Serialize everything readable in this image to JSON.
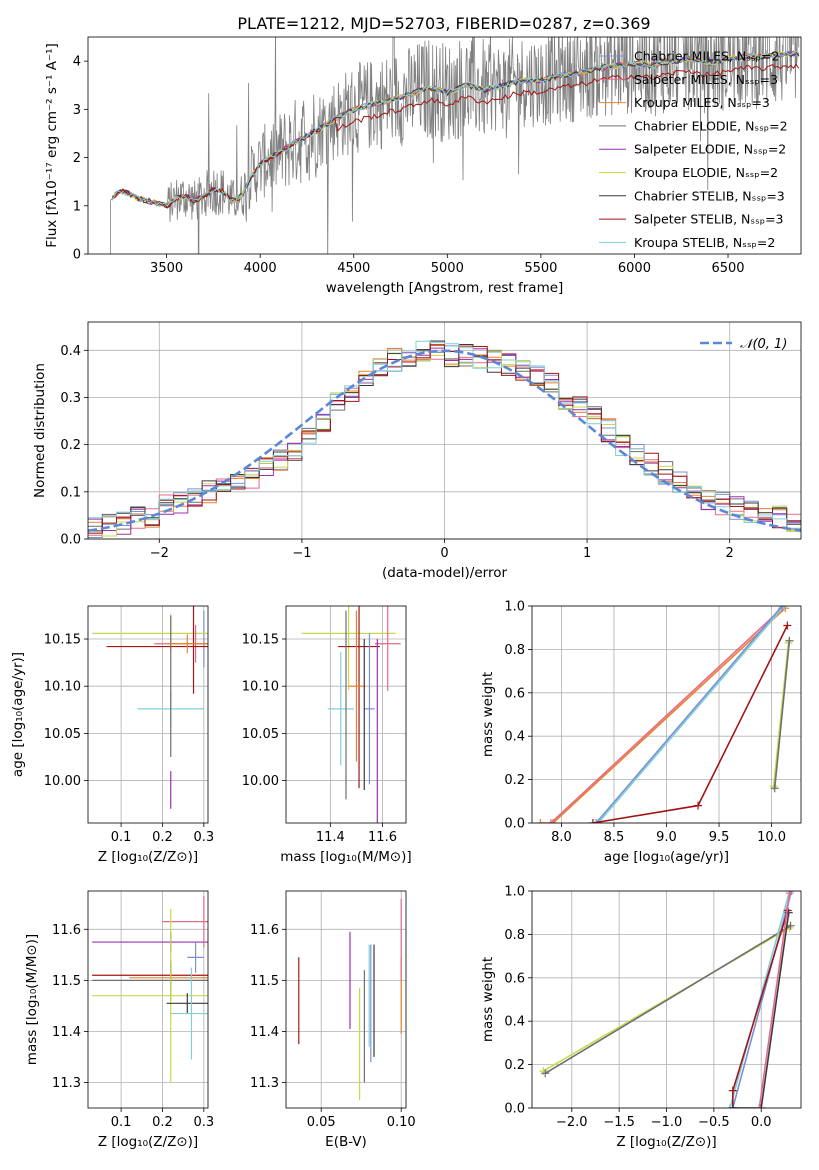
{
  "title": "PLATE=1212, MJD=52703, FIBERID=0287, z=0.369",
  "colors": {
    "chabrier_miles": "#7b8fd6",
    "salpeter_miles": "#e56a8a",
    "kroupa_miles": "#e8822a",
    "chabrier_elodie": "#6f6f6f",
    "salpeter_elodie": "#9b2fb0",
    "kroupa_elodie": "#c7d94a",
    "chabrier_stelib": "#3a3a3a",
    "salpeter_stelib": "#a31515",
    "kroupa_stelib": "#7fd0d8",
    "normal": "#5b87d6",
    "data": "#808080"
  },
  "chart_data": [
    {
      "type": "line",
      "xlabel": "wavelength [Angstrom, rest frame]",
      "ylabel": "Flux [fλ10⁻¹⁷ erg cm⁻² s⁻¹ A⁻¹]",
      "xlim": [
        3080,
        6890
      ],
      "ylim": [
        0,
        4.5
      ],
      "xticks": [
        3500,
        4000,
        4500,
        5000,
        5500,
        6000,
        6500
      ],
      "yticks": [
        0,
        1,
        2,
        3,
        4
      ],
      "legend": "right",
      "legend_entries": [
        "Chabrier MILES, Nₛₛₚ=2",
        "Salpeter MILES, Nₛₛₚ=3",
        "Kroupa MILES, Nₛₛₚ=3",
        "Chabrier ELODIE, Nₛₛₚ=2",
        "Salpeter ELODIE, Nₛₛₚ=2",
        "Kroupa ELODIE, Nₛₛₚ=2",
        "Chabrier STELIB, Nₛₛₚ=3",
        "Salpeter STELIB, Nₛₛₚ=3",
        "Kroupa STELIB, Nₛₛₚ=2"
      ],
      "continuum": {
        "x": [
          3200,
          3230,
          3260,
          3300,
          3350,
          3400,
          3450,
          3500,
          3550,
          3600,
          3650,
          3700,
          3750,
          3800,
          3850,
          3900,
          3950,
          4000,
          4050,
          4100,
          4200,
          4300,
          4400,
          4500,
          4600,
          4700,
          4800,
          4900,
          5000,
          5100,
          5200,
          5300,
          5400,
          5500,
          5600,
          5700,
          5800,
          5900,
          6000,
          6100,
          6200,
          6300,
          6400,
          6500,
          6600,
          6700,
          6800,
          6880
        ],
        "y": [
          1.1,
          1.25,
          1.3,
          1.25,
          1.15,
          1.1,
          1.05,
          1.0,
          1.15,
          1.2,
          1.1,
          1.2,
          1.35,
          1.3,
          1.1,
          1.2,
          1.6,
          1.85,
          2.0,
          2.1,
          2.35,
          2.55,
          2.8,
          3.0,
          3.1,
          3.2,
          3.3,
          3.45,
          3.35,
          3.5,
          3.4,
          3.5,
          3.6,
          3.6,
          3.7,
          3.75,
          3.85,
          3.9,
          3.95,
          3.9,
          4.0,
          4.05,
          3.95,
          4.05,
          4.1,
          4.1,
          4.15,
          4.15
        ]
      },
      "noise_xrange": [
        3500,
        6880
      ]
    },
    {
      "type": "step",
      "xlabel": "(data-model)/error",
      "ylabel": "Normed distribution",
      "xlim": [
        -2.5,
        2.5
      ],
      "ylim": [
        0,
        0.46
      ],
      "xticks": [
        -2,
        -1,
        0,
        1,
        2
      ],
      "yticks": [
        0.0,
        0.1,
        0.2,
        0.3,
        0.4
      ],
      "legend": "top-right",
      "legend_entries": [
        "𝒩(0, 1)"
      ],
      "bins": [
        -2.5,
        -2.4,
        -2.3,
        -2.2,
        -2.1,
        -2.0,
        -1.9,
        -1.8,
        -1.7,
        -1.6,
        -1.5,
        -1.4,
        -1.3,
        -1.2,
        -1.1,
        -1.0,
        -0.9,
        -0.8,
        -0.7,
        -0.6,
        -0.5,
        -0.4,
        -0.3,
        -0.2,
        -0.1,
        0.0,
        0.1,
        0.2,
        0.3,
        0.4,
        0.5,
        0.6,
        0.7,
        0.8,
        0.9,
        1.0,
        1.1,
        1.2,
        1.3,
        1.4,
        1.5,
        1.6,
        1.7,
        1.8,
        1.9,
        2.0,
        2.1,
        2.2,
        2.3,
        2.4,
        2.5
      ],
      "base_values": [
        0.025,
        0.03,
        0.035,
        0.045,
        0.05,
        0.07,
        0.075,
        0.085,
        0.1,
        0.11,
        0.12,
        0.13,
        0.15,
        0.17,
        0.19,
        0.22,
        0.25,
        0.29,
        0.31,
        0.34,
        0.36,
        0.38,
        0.39,
        0.4,
        0.4,
        0.39,
        0.39,
        0.385,
        0.375,
        0.37,
        0.355,
        0.345,
        0.33,
        0.3,
        0.28,
        0.26,
        0.23,
        0.2,
        0.18,
        0.16,
        0.14,
        0.12,
        0.1,
        0.085,
        0.075,
        0.065,
        0.055,
        0.05,
        0.045,
        0.04
      ]
    },
    {
      "type": "scatter-errorbar",
      "xlabel": "Z [log₁₀(Z/Z⊙)]",
      "ylabel": "age  [log₁₀(age/yr)]",
      "xlim": [
        0.02,
        0.31
      ],
      "ylim": [
        9.955,
        10.185
      ],
      "xticks": [
        0.1,
        0.2,
        0.3
      ],
      "yticks": [
        10.0,
        10.05,
        10.1,
        10.15
      ],
      "points": [
        {
          "c": "chabrier_miles",
          "x": 0.3,
          "xerr": 0.0,
          "y": 10.15,
          "yerr": 0.03
        },
        {
          "c": "kroupa_elodie",
          "x": 0.22,
          "xerr": 0.19,
          "y": 10.156,
          "yerr": 0.02
        },
        {
          "c": "salpeter_miles",
          "x": 0.28,
          "xerr": 0.1,
          "y": 10.145,
          "yerr": 0.02
        },
        {
          "c": "salpeter_stelib",
          "x": 0.275,
          "xerr": 0.21,
          "y": 10.142,
          "yerr": 0.05
        },
        {
          "c": "kroupa_stelib",
          "x": 0.22,
          "xerr": 0.08,
          "y": 10.076,
          "yerr": 0.02
        },
        {
          "c": "salpeter_elodie",
          "x": 0.22,
          "xerr": 0.0,
          "y": 9.99,
          "yerr": 0.02
        },
        {
          "c": "chabrier_elodie",
          "x": 0.22,
          "xerr": 0.0,
          "y": 10.1,
          "yerr": 0.075
        },
        {
          "c": "kroupa_miles",
          "x": 0.26,
          "xerr": 0.05,
          "y": 10.145,
          "yerr": 0.01
        }
      ]
    },
    {
      "type": "scatter-errorbar",
      "xlabel": "mass [log₁₀(M/M⊙)]",
      "ylabel": "",
      "xlim": [
        11.23,
        11.69
      ],
      "ylim": [
        9.955,
        10.185
      ],
      "xticks": [
        11.4,
        11.6
      ],
      "yticks": [
        10.0,
        10.05,
        10.1,
        10.15
      ],
      "points": [
        {
          "c": "kroupa_elodie",
          "x": 11.47,
          "xerr": 0.18,
          "y": 10.156,
          "yerr": 0.06
        },
        {
          "c": "salpeter_miles",
          "x": 11.62,
          "xerr": 0.05,
          "y": 10.145,
          "yerr": 0.05
        },
        {
          "c": "salpeter_stelib",
          "x": 11.51,
          "xerr": 0.08,
          "y": 10.142,
          "yerr": 0.15
        },
        {
          "c": "chabrier_miles",
          "x": 11.55,
          "xerr": 0.02,
          "y": 10.076,
          "yerr": 0.08
        },
        {
          "c": "kroupa_stelib",
          "x": 11.44,
          "xerr": 0.05,
          "y": 10.076,
          "yerr": 0.06
        },
        {
          "c": "salpeter_elodie",
          "x": 11.58,
          "xerr": 0.0,
          "y": 10.05,
          "yerr": 0.1
        },
        {
          "c": "chabrier_elodie",
          "x": 11.46,
          "xerr": 0.0,
          "y": 10.08,
          "yerr": 0.1
        },
        {
          "c": "kroupa_miles",
          "x": 11.5,
          "xerr": 0.03,
          "y": 10.1,
          "yerr": 0.08
        },
        {
          "c": "chabrier_stelib",
          "x": 11.53,
          "xerr": 0.0,
          "y": 10.07,
          "yerr": 0.08
        }
      ]
    },
    {
      "type": "line",
      "xlabel": "age  [log₁₀(age/yr)]",
      "ylabel": "mass weight",
      "xlim": [
        7.72,
        10.28
      ],
      "ylim": [
        0,
        1.0
      ],
      "xticks": [
        8.0,
        8.5,
        9.0,
        9.5,
        10.0
      ],
      "yticks": [
        0.0,
        0.2,
        0.4,
        0.6,
        0.8,
        1.0
      ],
      "series": [
        {
          "c": "kroupa_miles",
          "x": [
            7.8,
            7.92,
            10.13
          ],
          "y": [
            0.0,
            0.0,
            0.99
          ]
        },
        {
          "c": "salpeter_miles",
          "x": [
            7.9,
            10.1
          ],
          "y": [
            0.0,
            0.99
          ]
        },
        {
          "c": "kroupa_stelib",
          "x": [
            8.3,
            8.35,
            10.12
          ],
          "y": [
            0.0,
            0.0,
            1.0
          ]
        },
        {
          "c": "chabrier_miles",
          "x": [
            8.33,
            10.1
          ],
          "y": [
            0.0,
            1.0
          ]
        },
        {
          "c": "salpeter_stelib",
          "x": [
            8.3,
            9.3,
            10.15
          ],
          "y": [
            0.0,
            0.08,
            0.91
          ]
        },
        {
          "c": "kroupa_elodie",
          "x": [
            10.02,
            10.16
          ],
          "y": [
            0.17,
            0.83
          ]
        },
        {
          "c": "chabrier_elodie",
          "x": [
            10.03,
            10.17
          ],
          "y": [
            0.16,
            0.84
          ]
        }
      ]
    },
    {
      "type": "scatter-errorbar",
      "xlabel": "Z [log₁₀(Z/Z⊙)]",
      "ylabel": "mass [log₁₀(M/M⊙)]",
      "xlim": [
        0.02,
        0.31
      ],
      "ylim": [
        11.25,
        11.675
      ],
      "xticks": [
        0.1,
        0.2,
        0.3
      ],
      "yticks": [
        11.3,
        11.4,
        11.5,
        11.6
      ],
      "points": [
        {
          "c": "salpeter_elodie",
          "x": 0.22,
          "xerr": 0.19,
          "y": 11.575,
          "yerr": 0.02
        },
        {
          "c": "salpeter_miles",
          "x": 0.3,
          "xerr": 0.1,
          "y": 11.615,
          "yerr": 0.05
        },
        {
          "c": "chabrier_miles",
          "x": 0.28,
          "xerr": 0.02,
          "y": 11.545,
          "yerr": 0.03
        },
        {
          "c": "salpeter_stelib",
          "x": 0.22,
          "xerr": 0.19,
          "y": 11.51,
          "yerr": 0.02
        },
        {
          "c": "kroupa_miles",
          "x": 0.22,
          "xerr": 0.1,
          "y": 11.505,
          "yerr": 0.02
        },
        {
          "c": "chabrier_elodie",
          "x": 0.22,
          "xerr": 0.19,
          "y": 11.5,
          "yerr": 0.04
        },
        {
          "c": "kroupa_elodie",
          "x": 0.22,
          "xerr": 0.19,
          "y": 11.47,
          "yerr": 0.17
        },
        {
          "c": "chabrier_stelib",
          "x": 0.26,
          "xerr": 0.05,
          "y": 11.455,
          "yerr": 0.02
        },
        {
          "c": "kroupa_stelib",
          "x": 0.27,
          "xerr": 0.05,
          "y": 11.435,
          "yerr": 0.09
        }
      ]
    },
    {
      "type": "errorbar",
      "xlabel": "E(B-V)",
      "ylabel": "",
      "xlim": [
        0.028,
        0.103
      ],
      "ylim": [
        11.25,
        11.675
      ],
      "xticks": [
        0.05,
        0.1
      ],
      "yticks": [
        11.3,
        11.4,
        11.5,
        11.6
      ],
      "points": [
        {
          "c": "salpeter_stelib",
          "x": 0.036,
          "y": 11.46,
          "yerr": 0.085
        },
        {
          "c": "salpeter_elodie",
          "x": 0.068,
          "y": 11.5,
          "yerr": 0.095
        },
        {
          "c": "kroupa_elodie",
          "x": 0.074,
          "y": 11.375,
          "yerr": 0.11
        },
        {
          "c": "chabrier_elodie",
          "x": 0.077,
          "y": 11.41,
          "yerr": 0.11
        },
        {
          "c": "kroupa_stelib",
          "x": 0.08,
          "y": 11.47,
          "yerr": 0.1
        },
        {
          "c": "chabrier_miles",
          "x": 0.081,
          "y": 11.455,
          "yerr": 0.115
        },
        {
          "c": "chabrier_stelib",
          "x": 0.083,
          "y": 11.46,
          "yerr": 0.11
        },
        {
          "c": "kroupa_miles",
          "x": 0.1,
          "y": 11.47,
          "yerr": 0.075
        },
        {
          "c": "salpeter_miles",
          "x": 0.1,
          "y": 11.58,
          "yerr": 0.08
        }
      ]
    },
    {
      "type": "line",
      "xlabel": "Z [log₁₀(Z/Z⊙)]",
      "ylabel": "mass weight",
      "xlim": [
        -2.42,
        0.42
      ],
      "ylim": [
        0,
        1.0
      ],
      "xticks": [
        -2.0,
        -1.5,
        -1.0,
        -0.5,
        0.0
      ],
      "yticks": [
        0.0,
        0.2,
        0.4,
        0.6,
        0.8,
        1.0
      ],
      "series": [
        {
          "c": "kroupa_elodie",
          "x": [
            -2.3,
            0.3
          ],
          "y": [
            0.17,
            0.83
          ]
        },
        {
          "c": "chabrier_elodie",
          "x": [
            -2.28,
            0.31
          ],
          "y": [
            0.16,
            0.84
          ]
        },
        {
          "c": "kroupa_stelib",
          "x": [
            -0.33,
            0.3
          ],
          "y": [
            0.0,
            1.0
          ]
        },
        {
          "c": "chabrier_miles",
          "x": [
            -0.3,
            0.32
          ],
          "y": [
            0.0,
            1.0
          ]
        },
        {
          "c": "salpeter_stelib",
          "x": [
            -0.3,
            -0.3,
            0.28
          ],
          "y": [
            0.0,
            0.08,
            0.91
          ]
        },
        {
          "c": "chabrier_stelib",
          "x": [
            -0.3,
            0.0,
            0.29
          ],
          "y": [
            0.0,
            0.0,
            0.9
          ]
        },
        {
          "c": "salpeter_miles",
          "x": [
            -0.02,
            0.3
          ],
          "y": [
            0.0,
            0.99
          ]
        }
      ]
    }
  ]
}
